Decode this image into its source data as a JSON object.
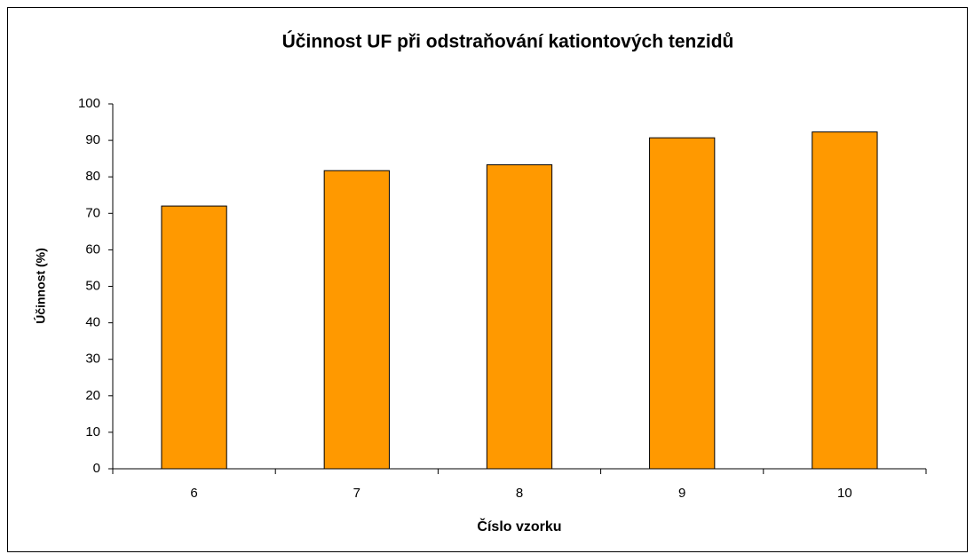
{
  "chart_data": {
    "type": "bar",
    "title": "Účinnost UF při odstraňování kationtových tenzidů",
    "xlabel": "Číslo vzorku",
    "ylabel": "Účinnost (%)",
    "categories": [
      "6",
      "7",
      "8",
      "9",
      "10"
    ],
    "values": [
      72,
      81.7,
      83.3,
      90.7,
      92.3
    ],
    "color": "#ff9900",
    "ylim": [
      0,
      100
    ],
    "yticks": [
      0,
      10,
      20,
      30,
      40,
      50,
      60,
      70,
      80,
      90,
      100
    ],
    "grid": false
  }
}
